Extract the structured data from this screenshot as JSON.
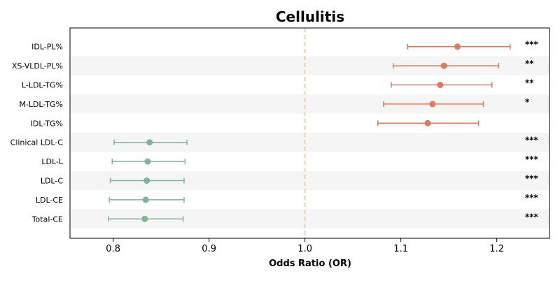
{
  "chart_data": {
    "type": "forest",
    "title": "Cellulitis",
    "xlabel": "Odds Ratio (OR)",
    "ylabel": "",
    "xlim": [
      0.755,
      1.255
    ],
    "xticks": [
      0.8,
      0.9,
      1.0,
      1.1,
      1.2
    ],
    "xtick_labels": [
      "0.8",
      "0.9",
      "1.0",
      "1.1",
      "1.2"
    ],
    "reference_line": 1.0,
    "reference_line_color": "#f4c27a",
    "increase_color": "#e07a5f",
    "decrease_color": "#81b29a",
    "band_color": "#f5f5f5",
    "grid": false,
    "rows": [
      {
        "label": "IDL-PL%",
        "or": 1.159,
        "lower": 1.107,
        "upper": 1.214,
        "sig": "***"
      },
      {
        "label": "XS-VLDL-PL%",
        "or": 1.145,
        "lower": 1.092,
        "upper": 1.202,
        "sig": "**"
      },
      {
        "label": "L-LDL-TG%",
        "or": 1.141,
        "lower": 1.09,
        "upper": 1.195,
        "sig": "**"
      },
      {
        "label": "M-LDL-TG%",
        "or": 1.133,
        "lower": 1.082,
        "upper": 1.186,
        "sig": "*"
      },
      {
        "label": "IDL-TG%",
        "or": 1.128,
        "lower": 1.076,
        "upper": 1.181,
        "sig": ""
      },
      {
        "label": "Clinical LDL-C",
        "or": 0.838,
        "lower": 0.801,
        "upper": 0.877,
        "sig": "***"
      },
      {
        "label": "LDL-L",
        "or": 0.836,
        "lower": 0.799,
        "upper": 0.875,
        "sig": "***"
      },
      {
        "label": "LDL-C",
        "or": 0.835,
        "lower": 0.797,
        "upper": 0.874,
        "sig": "***"
      },
      {
        "label": "LDL-CE",
        "or": 0.834,
        "lower": 0.796,
        "upper": 0.874,
        "sig": "***"
      },
      {
        "label": "Total-CE",
        "or": 0.833,
        "lower": 0.795,
        "upper": 0.873,
        "sig": "***"
      }
    ]
  }
}
